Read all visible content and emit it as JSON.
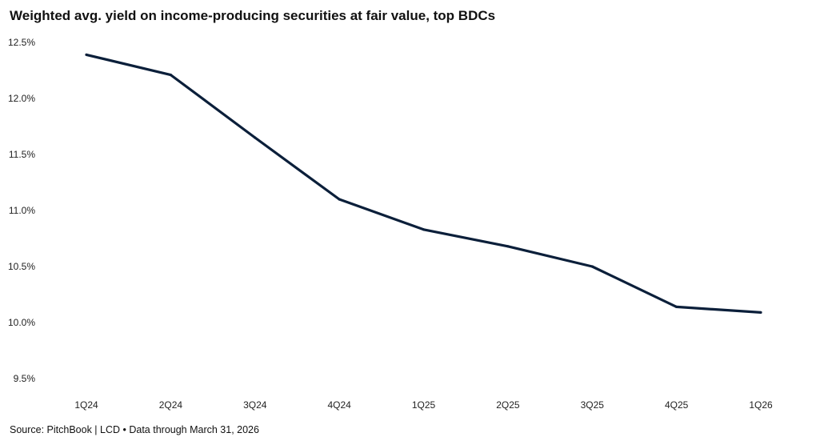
{
  "title": "Weighted avg. yield on income-producing securities at fair value, top BDCs",
  "source": "Source: PitchBook | LCD • Data through March 31, 2026",
  "colors": {
    "line": "#0b1f3a",
    "text": "#111111"
  },
  "chart_data": {
    "type": "line",
    "title": "Weighted avg. yield on income-producing securities at fair value, top BDCs",
    "xlabel": "",
    "ylabel": "",
    "categories": [
      "1Q24",
      "2Q24",
      "3Q24",
      "4Q24",
      "1Q25",
      "2Q25",
      "3Q25",
      "4Q25",
      "1Q26"
    ],
    "series": [
      {
        "values": [
          12.39,
          12.21,
          11.65,
          11.1,
          10.83,
          10.68,
          10.5,
          10.14,
          10.09
        ]
      }
    ],
    "ylim": [
      9.5,
      12.5
    ],
    "yticks": [
      9.5,
      10.0,
      10.5,
      11.0,
      11.5,
      12.0,
      12.5
    ],
    "ytick_labels": [
      "9.5%",
      "10.0%",
      "10.5%",
      "11.0%",
      "11.5%",
      "12.0%",
      "12.5%"
    ],
    "grid": false,
    "legend": "none"
  }
}
